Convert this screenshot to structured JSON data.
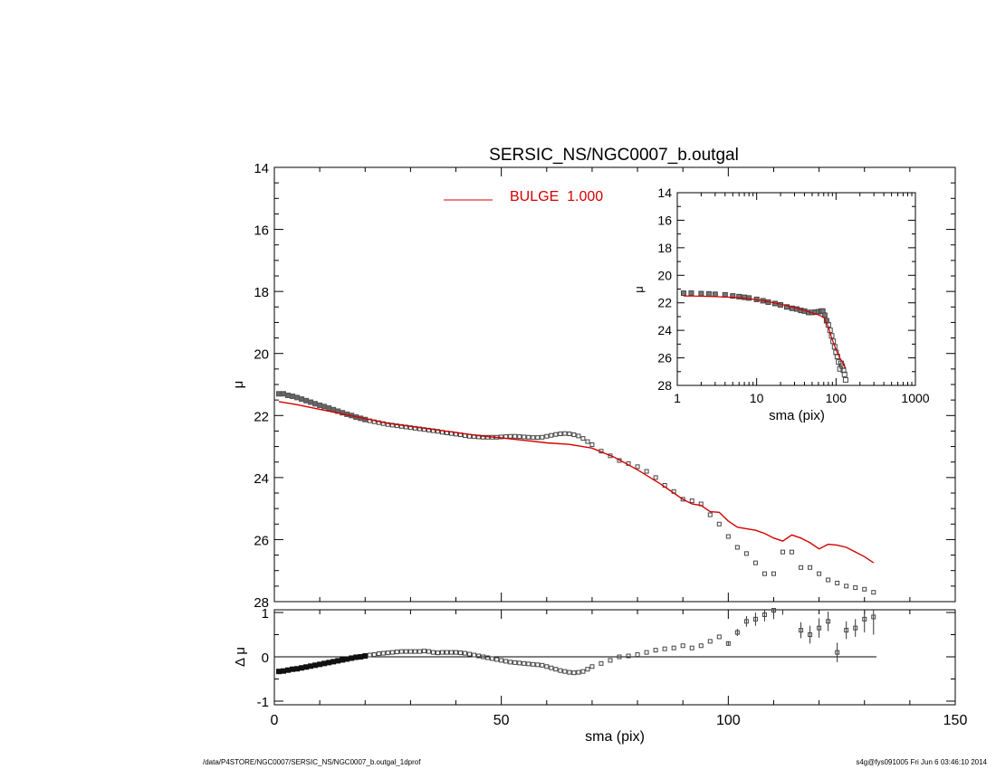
{
  "chart_data": [
    {
      "type": "line",
      "title": "SERSIC_NS/NGC0007_b.outgal",
      "xlabel": "",
      "ylabel": "μ",
      "xlim": [
        0,
        150
      ],
      "ylim": [
        28,
        14
      ],
      "y_inverted": true,
      "ytick_labels": [
        "14",
        "16",
        "18",
        "20",
        "22",
        "24",
        "26",
        "28"
      ],
      "legend": {
        "placement": "top-center",
        "entries": [
          {
            "label": "BULGE  1.000",
            "color": "#d40000"
          }
        ]
      },
      "series": [
        {
          "name": "data",
          "style": "open-square",
          "x": [
            1,
            2,
            3,
            4,
            5,
            6,
            7,
            8,
            9,
            10,
            11,
            12,
            13,
            14,
            15,
            16,
            17,
            18,
            19,
            20,
            21,
            22,
            23,
            24,
            25,
            26,
            27,
            28,
            29,
            30,
            31,
            32,
            33,
            34,
            35,
            36,
            37,
            38,
            39,
            40,
            41,
            42,
            43,
            44,
            45,
            46,
            47,
            48,
            49,
            50,
            51,
            52,
            53,
            54,
            55,
            56,
            57,
            58,
            59,
            60,
            61,
            62,
            63,
            64,
            65,
            66,
            67,
            68,
            69,
            70,
            72,
            74,
            76,
            78,
            80,
            82,
            84,
            86,
            88,
            90,
            92,
            94,
            96,
            98,
            100,
            102,
            104,
            106,
            108,
            110,
            112,
            114,
            116,
            118,
            120,
            122,
            124,
            126,
            128,
            130,
            132
          ],
          "y": [
            21.3,
            21.3,
            21.35,
            21.38,
            21.42,
            21.47,
            21.52,
            21.57,
            21.62,
            21.67,
            21.71,
            21.76,
            21.81,
            21.86,
            21.91,
            21.96,
            22.0,
            22.05,
            22.09,
            22.13,
            22.17,
            22.2,
            22.23,
            22.26,
            22.29,
            22.31,
            22.33,
            22.35,
            22.37,
            22.39,
            22.41,
            22.43,
            22.45,
            22.47,
            22.49,
            22.51,
            22.54,
            22.56,
            22.58,
            22.6,
            22.62,
            22.65,
            22.67,
            22.68,
            22.69,
            22.7,
            22.7,
            22.7,
            22.7,
            22.69,
            22.68,
            22.67,
            22.67,
            22.68,
            22.69,
            22.7,
            22.71,
            22.71,
            22.7,
            22.67,
            22.64,
            22.61,
            22.59,
            22.58,
            22.59,
            22.62,
            22.66,
            22.74,
            22.84,
            22.94,
            23.15,
            23.3,
            23.45,
            23.55,
            23.65,
            23.8,
            24.0,
            24.25,
            24.45,
            24.7,
            24.75,
            24.85,
            25.2,
            25.5,
            25.9,
            26.25,
            26.45,
            26.75,
            27.1,
            27.1,
            26.4,
            26.4,
            26.9,
            26.9,
            27.1,
            27.3,
            27.4,
            27.5,
            27.55,
            27.6,
            27.7
          ]
        },
        {
          "name": "BULGE  1.000",
          "style": "line",
          "color": "#d40000",
          "x": [
            1,
            5,
            10,
            15,
            20,
            25,
            30,
            35,
            40,
            45,
            50,
            55,
            60,
            65,
            70,
            75,
            80,
            85,
            88,
            90,
            92,
            94,
            96,
            98,
            100,
            102,
            104,
            106,
            108,
            110,
            112,
            114,
            116,
            118,
            120,
            122,
            124,
            126,
            128,
            130,
            132
          ],
          "y": [
            21.55,
            21.65,
            21.8,
            21.95,
            22.1,
            22.25,
            22.35,
            22.45,
            22.55,
            22.65,
            22.72,
            22.8,
            22.88,
            22.93,
            23.05,
            23.35,
            23.75,
            24.2,
            24.5,
            24.7,
            24.85,
            24.9,
            25.1,
            25.12,
            25.4,
            25.6,
            25.65,
            25.7,
            25.8,
            25.95,
            26.05,
            25.85,
            25.95,
            26.1,
            26.3,
            26.15,
            26.18,
            26.25,
            26.4,
            26.55,
            26.75
          ]
        }
      ]
    },
    {
      "type": "line",
      "title": "",
      "xlabel": "sma (pix)",
      "ylabel": "Δ μ",
      "xlim": [
        0,
        150
      ],
      "ylim": [
        -1.1,
        1.1
      ],
      "ytick_labels": [
        "1",
        "0",
        "-1"
      ],
      "xtick_labels": [
        "0",
        "50",
        "100",
        "150"
      ],
      "series": [
        {
          "name": "residual",
          "style": "open-square-errorbar",
          "x": [
            1,
            2,
            3,
            4,
            5,
            6,
            7,
            8,
            9,
            10,
            11,
            12,
            13,
            14,
            15,
            16,
            17,
            18,
            19,
            20,
            21,
            22,
            23,
            24,
            25,
            26,
            27,
            28,
            29,
            30,
            31,
            32,
            33,
            34,
            35,
            36,
            37,
            38,
            39,
            40,
            41,
            42,
            43,
            44,
            45,
            46,
            47,
            48,
            49,
            50,
            51,
            52,
            53,
            54,
            55,
            56,
            57,
            58,
            59,
            60,
            61,
            62,
            63,
            64,
            65,
            66,
            67,
            68,
            69,
            70,
            72,
            74,
            76,
            78,
            80,
            82,
            84,
            86,
            88,
            90,
            92,
            94,
            96,
            98,
            100,
            102,
            104,
            106,
            108,
            110,
            112,
            114,
            116,
            118,
            120,
            122,
            124,
            126,
            128,
            130,
            132
          ],
          "y": [
            -0.33,
            -0.32,
            -0.3,
            -0.28,
            -0.27,
            -0.25,
            -0.23,
            -0.21,
            -0.19,
            -0.17,
            -0.15,
            -0.13,
            -0.11,
            -0.09,
            -0.07,
            -0.05,
            -0.03,
            -0.01,
            0.0,
            0.02,
            0.04,
            0.05,
            0.07,
            0.08,
            0.09,
            0.1,
            0.11,
            0.12,
            0.12,
            0.12,
            0.12,
            0.12,
            0.13,
            0.12,
            0.1,
            0.09,
            0.1,
            0.1,
            0.1,
            0.1,
            0.09,
            0.08,
            0.06,
            0.04,
            0.02,
            0.0,
            -0.02,
            -0.04,
            -0.06,
            -0.08,
            -0.1,
            -0.12,
            -0.13,
            -0.14,
            -0.15,
            -0.16,
            -0.17,
            -0.18,
            -0.19,
            -0.22,
            -0.25,
            -0.28,
            -0.31,
            -0.33,
            -0.35,
            -0.36,
            -0.35,
            -0.33,
            -0.28,
            -0.22,
            -0.15,
            -0.08,
            0.0,
            0.02,
            0.05,
            0.1,
            0.15,
            0.18,
            0.2,
            0.25,
            0.2,
            0.25,
            0.35,
            0.45,
            0.3,
            0.55,
            0.8,
            0.85,
            0.95,
            1.05,
            1.15,
            1.25,
            0.6,
            0.5,
            0.65,
            0.8,
            0.1,
            0.6,
            0.65,
            0.85,
            0.9
          ],
          "err": [
            0,
            0,
            0,
            0,
            0,
            0,
            0,
            0,
            0,
            0,
            0,
            0,
            0,
            0,
            0,
            0,
            0,
            0,
            0,
            0,
            0,
            0,
            0,
            0,
            0,
            0,
            0,
            0,
            0,
            0,
            0,
            0,
            0,
            0,
            0,
            0,
            0,
            0,
            0,
            0,
            0,
            0,
            0,
            0,
            0,
            0,
            0,
            0,
            0,
            0,
            0,
            0,
            0,
            0,
            0,
            0,
            0,
            0,
            0,
            0,
            0,
            0,
            0,
            0,
            0,
            0,
            0,
            0,
            0,
            0,
            0,
            0,
            0,
            0,
            0,
            0,
            0,
            0,
            0,
            0,
            0,
            0,
            0,
            0,
            0.05,
            0.08,
            0.12,
            0.15,
            0.15,
            0.2,
            0.2,
            0.2,
            0.18,
            0.2,
            0.22,
            0.22,
            0.22,
            0.2,
            0.2,
            0.3,
            0.4
          ]
        }
      ]
    },
    {
      "type": "line",
      "title": "",
      "xlabel": "sma (pix)",
      "ylabel": "μ",
      "xscale": "log",
      "xlim": [
        1,
        1000
      ],
      "ylim": [
        28,
        14
      ],
      "y_inverted": true,
      "ytick_labels": [
        "14",
        "16",
        "18",
        "20",
        "22",
        "24",
        "26",
        "28"
      ],
      "xtick_labels": [
        "1",
        "10",
        "100",
        "1000"
      ],
      "series": [
        {
          "name": "data",
          "style": "open-square",
          "x": [
            1.2,
            1.5,
            2,
            2.5,
            3,
            4,
            5,
            6,
            7,
            8,
            10,
            12,
            14,
            17,
            20,
            24,
            28,
            32,
            36,
            40,
            45,
            50,
            55,
            60,
            65,
            68,
            72,
            76,
            80,
            84,
            88,
            92,
            96,
            100,
            104,
            108,
            112,
            116,
            120,
            124,
            128,
            132
          ],
          "y": [
            21.3,
            21.3,
            21.33,
            21.35,
            21.38,
            21.42,
            21.5,
            21.55,
            21.6,
            21.65,
            21.75,
            21.85,
            21.95,
            22.05,
            22.15,
            22.3,
            22.4,
            22.45,
            22.55,
            22.6,
            22.7,
            22.7,
            22.68,
            22.65,
            22.6,
            22.6,
            22.9,
            23.3,
            23.6,
            24.0,
            24.4,
            24.8,
            25.2,
            25.6,
            25.9,
            26.3,
            26.8,
            26.4,
            26.6,
            26.9,
            27.2,
            27.6
          ]
        },
        {
          "name": "BULGE  1.000",
          "style": "line",
          "color": "#d40000",
          "x": [
            1.2,
            2,
            3,
            5,
            8,
            12,
            20,
            30,
            45,
            60,
            70,
            80,
            90,
            100,
            110,
            120,
            132
          ],
          "y": [
            21.5,
            21.52,
            21.55,
            21.6,
            21.7,
            21.85,
            22.1,
            22.35,
            22.65,
            22.88,
            23.05,
            23.75,
            24.7,
            25.4,
            25.95,
            26.3,
            26.75
          ]
        }
      ]
    }
  ],
  "footer": {
    "left": "/data/P4STORE/NGC0007/SERSIC_NS/NGC0007_b.outgal_1dprof",
    "right": "s4g@fys091005  Fri Jun  6 03:46:10 2014"
  }
}
